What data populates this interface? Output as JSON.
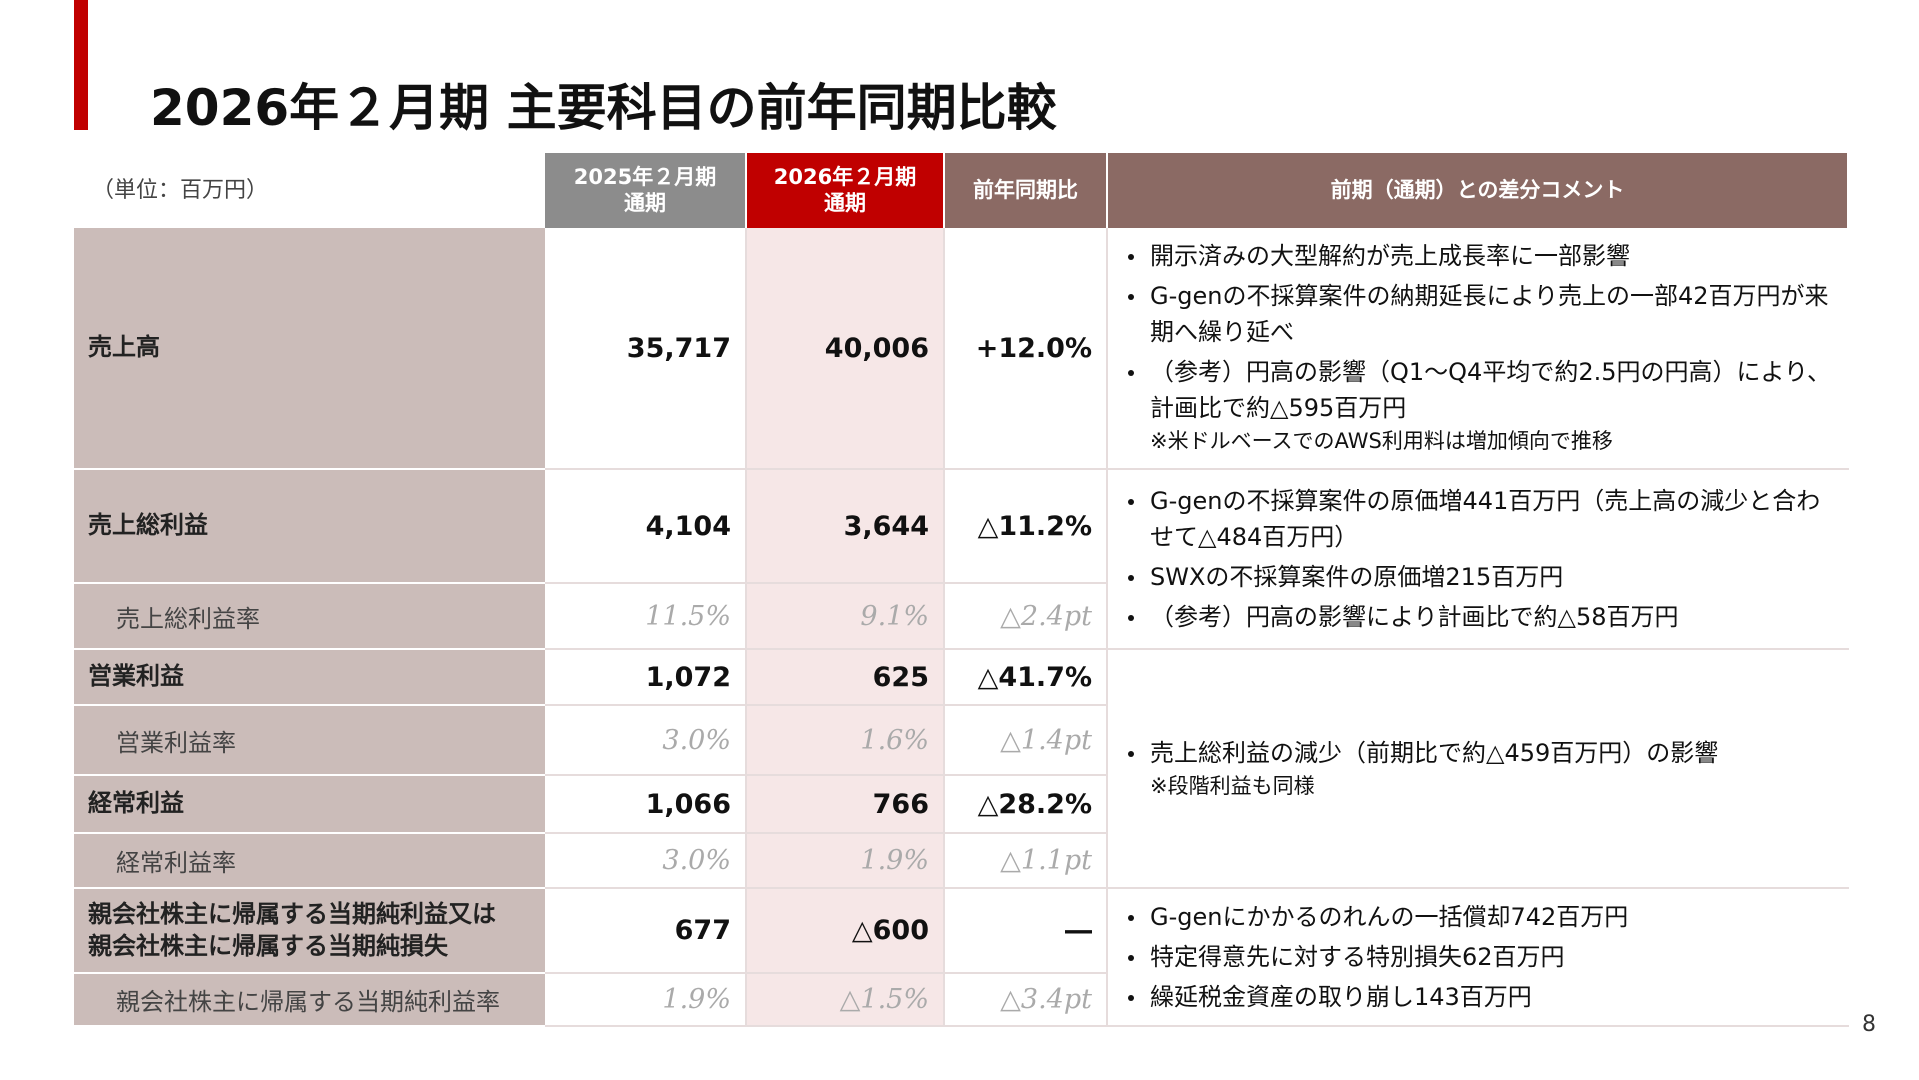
{
  "title": "2026年２月期 主要科目の前年同期比較",
  "unit": "（単位：百万円）",
  "page_number": "8",
  "table": {
    "headers": [
      "2025年２月期\n通期",
      "2026年２月期\n通期",
      "前年同期比",
      "前期（通期）との差分コメント"
    ],
    "rows": [
      {
        "label": "売上高",
        "kind": "main",
        "values": [
          "35,717",
          "40,006",
          "+12.0%"
        ]
      },
      {
        "label": "売上総利益",
        "kind": "main",
        "values": [
          "4,104",
          "3,644",
          "△11.2%"
        ]
      },
      {
        "label": "売上総利益率",
        "kind": "ratio",
        "values": [
          "11.5%",
          "9.1%",
          "△2.4pt"
        ]
      },
      {
        "label": "営業利益",
        "kind": "main",
        "values": [
          "1,072",
          "625",
          "△41.7%"
        ]
      },
      {
        "label": "営業利益率",
        "kind": "ratio",
        "values": [
          "3.0%",
          "1.6%",
          "△1.4pt"
        ]
      },
      {
        "label": "経常利益",
        "kind": "main",
        "values": [
          "1,066",
          "766",
          "△28.2%"
        ]
      },
      {
        "label": "経常利益率",
        "kind": "ratio",
        "values": [
          "3.0%",
          "1.9%",
          "△1.1pt"
        ]
      },
      {
        "label": "親会社株主に帰属する当期純利益又は\n親会社株主に帰属する当期純損失",
        "kind": "main",
        "values": [
          "677",
          "△600",
          "―"
        ]
      },
      {
        "label": "親会社株主に帰属する当期純利益率",
        "kind": "ratio",
        "values": [
          "1.9%",
          "△1.5%",
          "△3.4pt"
        ]
      }
    ],
    "comments": [
      {
        "items": [
          {
            "text": "開示済みの大型解約が売上成長率に一部影響"
          },
          {
            "text": "G-genの不採算案件の納期延長により売上の一部42百万円が来期へ繰り延べ"
          },
          {
            "text": "（参考）円高の影響（Q1～Q4平均で約2.5円の円高）により、計画比で約△595百万円",
            "note": "※米ドルベースでのAWS利用料は増加傾向で推移"
          }
        ]
      },
      {
        "items": [
          {
            "text": "G-genの不採算案件の原価増441百万円（売上高の減少と合わせて△484百万円）"
          },
          {
            "text": "SWXの不採算案件の原価増215百万円"
          },
          {
            "text": "（参考）円高の影響により計画比で約△58百万円"
          }
        ]
      },
      {
        "items": [
          {
            "text": "売上総利益の減少（前期比で約△459百万円）の影響",
            "note": "※段階利益も同様"
          }
        ]
      },
      {
        "items": [
          {
            "text": "G-genにかかるのれんの一括償却742百万円"
          },
          {
            "text": "特定得意先に対する特別損失62百万円"
          },
          {
            "text": "繰延税金資産の取り崩し143百万円"
          }
        ]
      }
    ]
  }
}
